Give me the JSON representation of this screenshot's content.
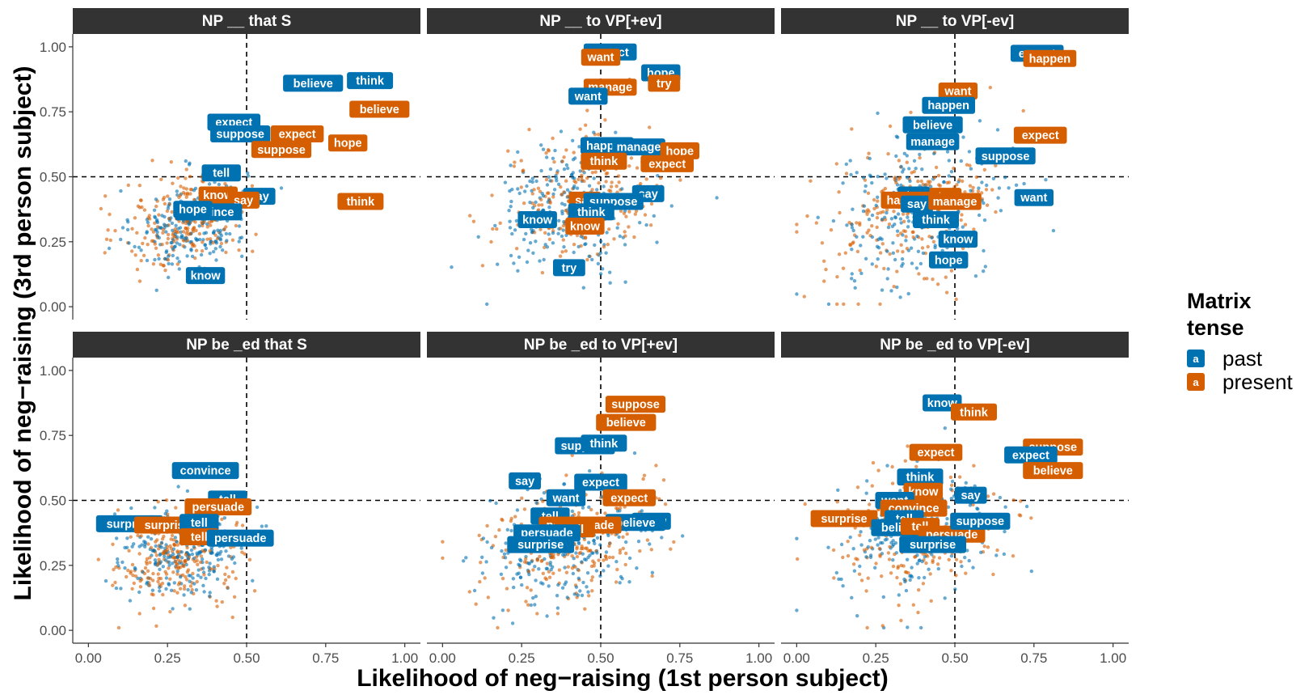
{
  "chart_data": {
    "type": "scatter",
    "xlabel": "Likelihood of neg−raising (1st person subject)",
    "ylabel": "Likelihood of neg−raising (3rd person subject)",
    "xlim": [
      0,
      1
    ],
    "ylim": [
      0,
      1
    ],
    "x_ticks": [
      "0.00",
      "0.25",
      "0.50",
      "0.75",
      "1.00"
    ],
    "y_ticks": [
      "0.00",
      "0.25",
      "0.50",
      "0.75",
      "1.00"
    ],
    "reference_lines": {
      "x": 0.5,
      "y": 0.5
    },
    "legend": {
      "title_line1": "Matrix",
      "title_line2": "tense",
      "key_glyph": "a",
      "items": [
        {
          "name": "past",
          "color": "#0072B2"
        },
        {
          "name": "present",
          "color": "#D55E00"
        }
      ]
    },
    "colors": {
      "past": "#0072B2",
      "present": "#D55E00",
      "strip_bg": "#333333"
    },
    "panels": [
      {
        "title": "NP __ that S",
        "cloud": {
          "past": [
            0.32,
            0.32,
            0.09,
            0.09,
            0.23
          ],
          "present": [
            0.31,
            0.33,
            0.1,
            0.09,
            0.18
          ]
        },
        "labels": [
          {
            "text": "think",
            "tense": "past",
            "x": 0.89,
            "y": 0.87
          },
          {
            "text": "believe",
            "tense": "past",
            "x": 0.71,
            "y": 0.86
          },
          {
            "text": "believe",
            "tense": "present",
            "x": 0.92,
            "y": 0.76
          },
          {
            "text": "expect",
            "tense": "past",
            "x": 0.46,
            "y": 0.71
          },
          {
            "text": "suppose",
            "tense": "past",
            "x": 0.48,
            "y": 0.665
          },
          {
            "text": "expect",
            "tense": "present",
            "x": 0.66,
            "y": 0.665
          },
          {
            "text": "hope",
            "tense": "present",
            "x": 0.82,
            "y": 0.63
          },
          {
            "text": "suppose",
            "tense": "present",
            "x": 0.61,
            "y": 0.605
          },
          {
            "text": "tell",
            "tense": "past",
            "x": 0.42,
            "y": 0.515
          },
          {
            "text": "say",
            "tense": "past",
            "x": 0.54,
            "y": 0.425
          },
          {
            "text": "know",
            "tense": "present",
            "x": 0.41,
            "y": 0.43
          },
          {
            "text": "say",
            "tense": "present",
            "x": 0.49,
            "y": 0.41
          },
          {
            "text": "think",
            "tense": "present",
            "x": 0.86,
            "y": 0.405
          },
          {
            "text": "convince",
            "tense": "past",
            "x": 0.38,
            "y": 0.365
          },
          {
            "text": "hope",
            "tense": "past",
            "x": 0.33,
            "y": 0.375
          },
          {
            "text": "know",
            "tense": "past",
            "x": 0.37,
            "y": 0.12
          }
        ]
      },
      {
        "title": "NP __ to VP[+ev]",
        "cloud": {
          "past": [
            0.4,
            0.38,
            0.12,
            0.12,
            0.2
          ],
          "present": [
            0.43,
            0.4,
            0.12,
            0.12,
            0.17
          ]
        },
        "labels": [
          {
            "text": "expect",
            "tense": "past",
            "x": 0.53,
            "y": 0.98
          },
          {
            "text": "want",
            "tense": "present",
            "x": 0.5,
            "y": 0.96
          },
          {
            "text": "hope",
            "tense": "past",
            "x": 0.69,
            "y": 0.9
          },
          {
            "text": "try",
            "tense": "present",
            "x": 0.7,
            "y": 0.86
          },
          {
            "text": "manage",
            "tense": "present",
            "x": 0.53,
            "y": 0.845
          },
          {
            "text": "want",
            "tense": "past",
            "x": 0.46,
            "y": 0.81
          },
          {
            "text": "happen",
            "tense": "past",
            "x": 0.52,
            "y": 0.62
          },
          {
            "text": "manage",
            "tense": "past",
            "x": 0.62,
            "y": 0.615
          },
          {
            "text": "hope",
            "tense": "present",
            "x": 0.75,
            "y": 0.6
          },
          {
            "text": "think",
            "tense": "present",
            "x": 0.51,
            "y": 0.56
          },
          {
            "text": "expect",
            "tense": "present",
            "x": 0.71,
            "y": 0.55
          },
          {
            "text": "say",
            "tense": "past",
            "x": 0.65,
            "y": 0.435
          },
          {
            "text": "say",
            "tense": "present",
            "x": 0.45,
            "y": 0.41
          },
          {
            "text": "suppose",
            "tense": "past",
            "x": 0.54,
            "y": 0.405
          },
          {
            "text": "think",
            "tense": "past",
            "x": 0.47,
            "y": 0.365
          },
          {
            "text": "know",
            "tense": "past",
            "x": 0.3,
            "y": 0.335
          },
          {
            "text": "know",
            "tense": "present",
            "x": 0.45,
            "y": 0.31
          },
          {
            "text": "try",
            "tense": "past",
            "x": 0.4,
            "y": 0.15
          }
        ]
      },
      {
        "title": "NP __ to VP[-ev]",
        "cloud": {
          "past": [
            0.38,
            0.38,
            0.13,
            0.15,
            0.22
          ],
          "present": [
            0.36,
            0.37,
            0.13,
            0.14,
            0.18
          ]
        },
        "labels": [
          {
            "text": "expect",
            "tense": "past",
            "x": 0.76,
            "y": 0.975
          },
          {
            "text": "happen",
            "tense": "present",
            "x": 0.8,
            "y": 0.955
          },
          {
            "text": "want",
            "tense": "present",
            "x": 0.51,
            "y": 0.83
          },
          {
            "text": "happen",
            "tense": "past",
            "x": 0.48,
            "y": 0.775
          },
          {
            "text": "believe",
            "tense": "past",
            "x": 0.43,
            "y": 0.7
          },
          {
            "text": "expect",
            "tense": "present",
            "x": 0.77,
            "y": 0.66
          },
          {
            "text": "manage",
            "tense": "past",
            "x": 0.43,
            "y": 0.635
          },
          {
            "text": "suppose",
            "tense": "past",
            "x": 0.66,
            "y": 0.58
          },
          {
            "text": "want",
            "tense": "past",
            "x": 0.75,
            "y": 0.42
          },
          {
            "text": "try",
            "tense": "past",
            "x": 0.37,
            "y": 0.43
          },
          {
            "text": "try",
            "tense": "present",
            "x": 0.47,
            "y": 0.425
          },
          {
            "text": "happen",
            "tense": "present",
            "x": 0.35,
            "y": 0.41
          },
          {
            "text": "say",
            "tense": "past",
            "x": 0.38,
            "y": 0.395
          },
          {
            "text": "manage",
            "tense": "present",
            "x": 0.5,
            "y": 0.405
          },
          {
            "text": "think",
            "tense": "past",
            "x": 0.44,
            "y": 0.335
          },
          {
            "text": "know",
            "tense": "past",
            "x": 0.51,
            "y": 0.26
          },
          {
            "text": "hope",
            "tense": "past",
            "x": 0.48,
            "y": 0.18
          }
        ]
      },
      {
        "title": "NP be _ed that S",
        "cloud": {
          "past": [
            0.3,
            0.3,
            0.09,
            0.09,
            0.17
          ],
          "present": [
            0.28,
            0.29,
            0.09,
            0.09,
            0.15
          ]
        },
        "labels": [
          {
            "text": "convince",
            "tense": "past",
            "x": 0.37,
            "y": 0.615
          },
          {
            "text": "tell",
            "tense": "past",
            "x": 0.44,
            "y": 0.505
          },
          {
            "text": "persuade",
            "tense": "present",
            "x": 0.41,
            "y": 0.475
          },
          {
            "text": "surprise",
            "tense": "past",
            "x": 0.13,
            "y": 0.41
          },
          {
            "text": "surprise",
            "tense": "present",
            "x": 0.25,
            "y": 0.405
          },
          {
            "text": "tell",
            "tense": "past",
            "x": 0.35,
            "y": 0.415
          },
          {
            "text": "tell",
            "tense": "present",
            "x": 0.35,
            "y": 0.36
          },
          {
            "text": "persuade",
            "tense": "past",
            "x": 0.48,
            "y": 0.355
          }
        ]
      },
      {
        "title": "NP be _ed to VP[+ev]",
        "cloud": {
          "past": [
            0.38,
            0.33,
            0.12,
            0.11,
            0.21
          ],
          "present": [
            0.39,
            0.34,
            0.13,
            0.12,
            0.17
          ]
        },
        "labels": [
          {
            "text": "suppose",
            "tense": "present",
            "x": 0.61,
            "y": 0.87
          },
          {
            "text": "believe",
            "tense": "present",
            "x": 0.58,
            "y": 0.8
          },
          {
            "text": "suppose",
            "tense": "past",
            "x": 0.45,
            "y": 0.71
          },
          {
            "text": "think",
            "tense": "past",
            "x": 0.51,
            "y": 0.72
          },
          {
            "text": "say",
            "tense": "past",
            "x": 0.26,
            "y": 0.575
          },
          {
            "text": "expect",
            "tense": "past",
            "x": 0.5,
            "y": 0.57
          },
          {
            "text": "want",
            "tense": "past",
            "x": 0.39,
            "y": 0.51
          },
          {
            "text": "expect",
            "tense": "present",
            "x": 0.59,
            "y": 0.51
          },
          {
            "text": "tell",
            "tense": "past",
            "x": 0.34,
            "y": 0.44
          },
          {
            "text": "know",
            "tense": "past",
            "x": 0.66,
            "y": 0.42
          },
          {
            "text": "believe",
            "tense": "past",
            "x": 0.61,
            "y": 0.415
          },
          {
            "text": "persuade",
            "tense": "present",
            "x": 0.41,
            "y": 0.405
          },
          {
            "text": "persuade",
            "tense": "present",
            "x": 0.46,
            "y": 0.405
          },
          {
            "text": "tell",
            "tense": "present",
            "x": 0.42,
            "y": 0.39
          },
          {
            "text": "persuade",
            "tense": "past",
            "x": 0.33,
            "y": 0.375
          },
          {
            "text": "surprise",
            "tense": "past",
            "x": 0.31,
            "y": 0.33
          }
        ]
      },
      {
        "title": "NP be _ed to VP[-ev]",
        "cloud": {
          "past": [
            0.38,
            0.38,
            0.12,
            0.13,
            0.22
          ],
          "present": [
            0.39,
            0.38,
            0.13,
            0.12,
            0.18
          ]
        },
        "labels": [
          {
            "text": "know",
            "tense": "past",
            "x": 0.46,
            "y": 0.875
          },
          {
            "text": "think",
            "tense": "present",
            "x": 0.56,
            "y": 0.84
          },
          {
            "text": "suppose",
            "tense": "present",
            "x": 0.81,
            "y": 0.705
          },
          {
            "text": "expect",
            "tense": "past",
            "x": 0.74,
            "y": 0.675
          },
          {
            "text": "expect",
            "tense": "present",
            "x": 0.44,
            "y": 0.685
          },
          {
            "text": "believe",
            "tense": "present",
            "x": 0.81,
            "y": 0.615
          },
          {
            "text": "think",
            "tense": "past",
            "x": 0.39,
            "y": 0.59
          },
          {
            "text": "know",
            "tense": "present",
            "x": 0.4,
            "y": 0.535
          },
          {
            "text": "say",
            "tense": "past",
            "x": 0.55,
            "y": 0.52
          },
          {
            "text": "want",
            "tense": "past",
            "x": 0.31,
            "y": 0.5
          },
          {
            "text": "convince",
            "tense": "present",
            "x": 0.37,
            "y": 0.47
          },
          {
            "text": "tell",
            "tense": "past",
            "x": 0.34,
            "y": 0.43
          },
          {
            "text": "surprise",
            "tense": "present",
            "x": 0.15,
            "y": 0.43
          },
          {
            "text": "believe",
            "tense": "past",
            "x": 0.33,
            "y": 0.395
          },
          {
            "text": "tell",
            "tense": "present",
            "x": 0.39,
            "y": 0.4
          },
          {
            "text": "persuade",
            "tense": "present",
            "x": 0.49,
            "y": 0.37
          },
          {
            "text": "suppose",
            "tense": "past",
            "x": 0.58,
            "y": 0.42
          },
          {
            "text": "surprise",
            "tense": "past",
            "x": 0.43,
            "y": 0.33
          }
        ]
      }
    ]
  }
}
